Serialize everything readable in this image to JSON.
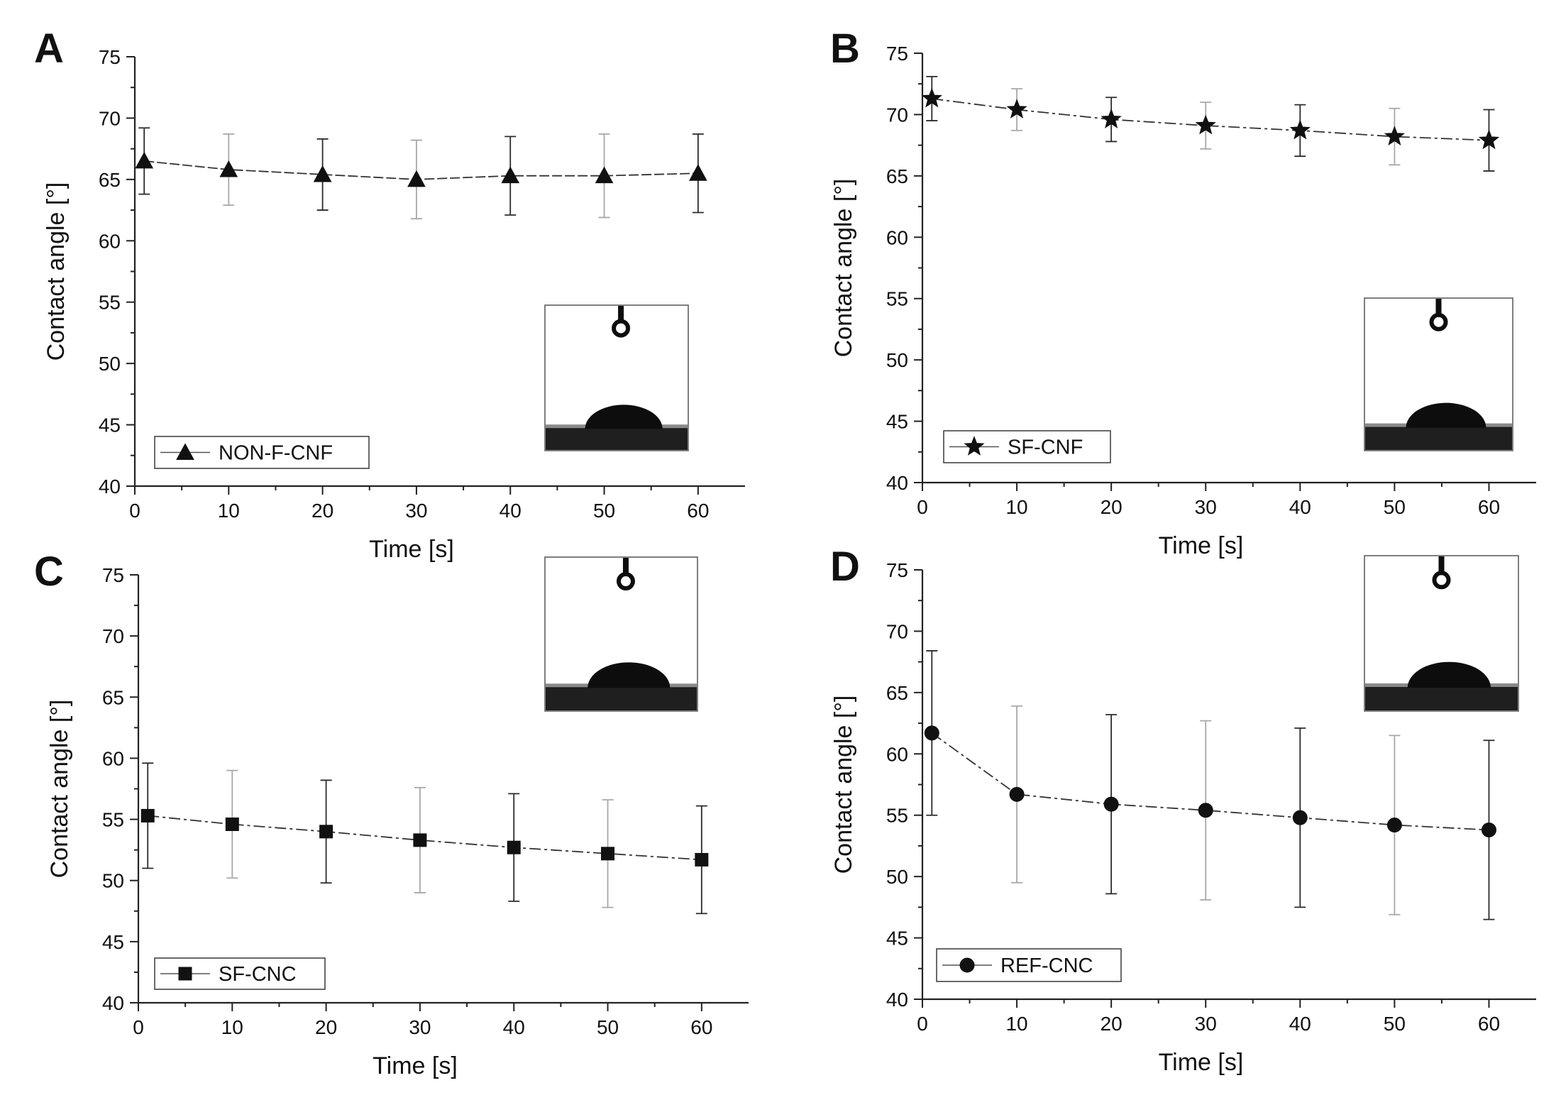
{
  "chart_data": [
    {
      "type": "line",
      "panel": "A",
      "series_name": "NON-F-CNF",
      "marker": "triangle",
      "x": [
        1,
        10,
        20,
        30,
        40,
        50,
        60
      ],
      "values": [
        66.5,
        65.8,
        65.4,
        65.0,
        65.3,
        65.3,
        65.5
      ],
      "errors": [
        2.7,
        2.9,
        2.9,
        3.2,
        3.2,
        3.4,
        3.2
      ],
      "xlabel": "Time [s]",
      "ylabel": "Contact angle [°]",
      "xlim": [
        0,
        65
      ],
      "ylim": [
        40,
        75
      ],
      "xticks": [
        0,
        10,
        20,
        30,
        40,
        50,
        60
      ],
      "yticks": [
        40,
        45,
        50,
        55,
        60,
        65,
        70,
        75
      ],
      "legend_position": "bottom-left",
      "inset_position": "bottom-right"
    },
    {
      "type": "line",
      "panel": "B",
      "series_name": "SF-CNF",
      "marker": "star",
      "x": [
        1,
        10,
        20,
        30,
        40,
        50,
        60
      ],
      "values": [
        71.3,
        70.4,
        69.6,
        69.1,
        68.7,
        68.2,
        67.9
      ],
      "errors": [
        1.8,
        1.7,
        1.8,
        1.9,
        2.1,
        2.3,
        2.5
      ],
      "xlabel": "Time [s]",
      "ylabel": "Contact angle [°]",
      "xlim": [
        0,
        65
      ],
      "ylim": [
        40,
        75
      ],
      "xticks": [
        0,
        10,
        20,
        30,
        40,
        50,
        60
      ],
      "yticks": [
        40,
        45,
        50,
        55,
        60,
        65,
        70,
        75
      ],
      "legend_position": "bottom-left",
      "inset_position": "bottom-right"
    },
    {
      "type": "line",
      "panel": "C",
      "series_name": "SF-CNC",
      "marker": "square",
      "x": [
        1,
        10,
        20,
        30,
        40,
        50,
        60
      ],
      "values": [
        55.3,
        54.6,
        54.0,
        53.3,
        52.7,
        52.2,
        51.7
      ],
      "errors": [
        4.3,
        4.4,
        4.2,
        4.3,
        4.4,
        4.4,
        4.4
      ],
      "xlabel": "Time [s]",
      "ylabel": "Contact angle [°]",
      "xlim": [
        0,
        65
      ],
      "ylim": [
        40,
        75
      ],
      "xticks": [
        0,
        10,
        20,
        30,
        40,
        50,
        60
      ],
      "yticks": [
        40,
        45,
        50,
        55,
        60,
        65,
        70,
        75
      ],
      "legend_position": "bottom-left",
      "inset_position": "top-right"
    },
    {
      "type": "line",
      "panel": "D",
      "series_name": "REF-CNC",
      "marker": "circle",
      "x": [
        1,
        10,
        20,
        30,
        40,
        50,
        60
      ],
      "values": [
        61.7,
        56.7,
        55.9,
        55.4,
        54.8,
        54.2,
        53.8
      ],
      "errors": [
        6.7,
        7.2,
        7.3,
        7.3,
        7.3,
        7.3,
        7.3
      ],
      "xlabel": "Time [s]",
      "ylabel": "Contact angle [°]",
      "xlim": [
        0,
        65
      ],
      "ylim": [
        40,
        75
      ],
      "xticks": [
        0,
        10,
        20,
        30,
        40,
        50,
        60
      ],
      "yticks": [
        40,
        45,
        50,
        55,
        60,
        65,
        70,
        75
      ],
      "legend_position": "bottom-left",
      "inset_position": "top-right"
    }
  ],
  "colors": {
    "line": "#333333",
    "marker": "#111111",
    "errorbar_dark": "#2b2b2b",
    "errorbar_light": "#a8a8a8",
    "droplet": "#0d0d0d",
    "substrate": "#1f1f1f"
  }
}
